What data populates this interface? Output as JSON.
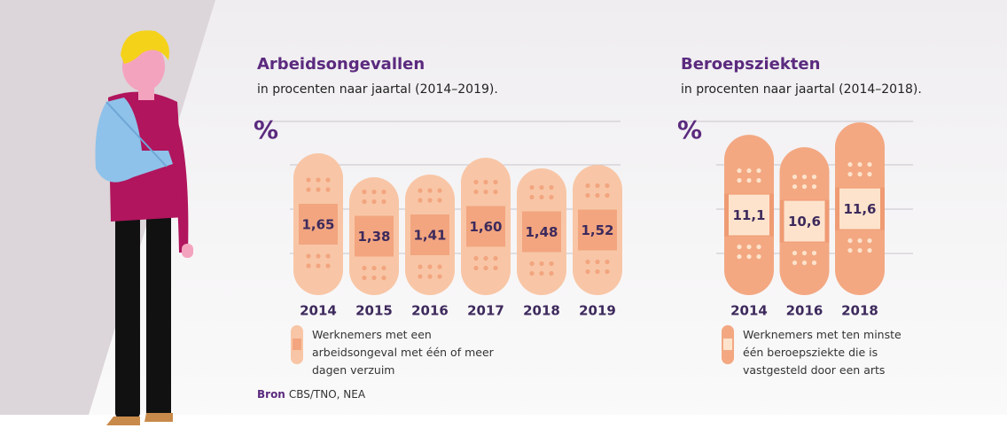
{
  "source": {
    "label": "Bron",
    "text": "CBS/TNO, NEA"
  },
  "chart_data": [
    {
      "type": "bar",
      "title": "Arbeidsongevallen",
      "subtitle": "in procenten naar jaartal (2014–2019).",
      "y_label": "%",
      "categories": [
        "2014",
        "2015",
        "2016",
        "2017",
        "2018",
        "2019"
      ],
      "series": [
        {
          "name": "Werknemers met een arbeidsongeval met één of meer dagen verzuim",
          "color": "#f8c6a6",
          "pad_color": "#f2a57f",
          "values": [
            1.65,
            1.38,
            1.41,
            1.6,
            1.48,
            1.52
          ],
          "value_labels": [
            "1,65",
            "1,38",
            "1,41",
            "1,60",
            "1,48",
            "1,52"
          ]
        }
      ],
      "ylim": [
        0.05,
        2.01
      ]
    },
    {
      "type": "bar",
      "title": "Beroepsziekten",
      "subtitle": "in procenten naar jaartal (2014–2018).",
      "y_label": "%",
      "categories": [
        "2014",
        "2016",
        "2018"
      ],
      "series": [
        {
          "name": "Werknemers met ten minste één beroepsziekte die is vastgesteld door een arts",
          "color": "#f3a882",
          "pad_color": "#fde3cc",
          "values": [
            11.1,
            10.6,
            11.6
          ],
          "value_labels": [
            "11,1",
            "10,6",
            "11,6"
          ]
        }
      ],
      "ylim": [
        4.64,
        11.64
      ]
    }
  ]
}
